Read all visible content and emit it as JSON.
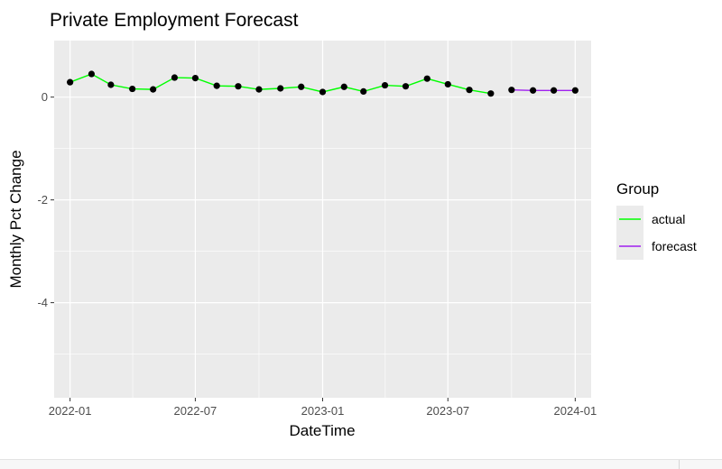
{
  "chart_data": {
    "type": "line",
    "title": "Private Employment Forecast",
    "xlabel": "DateTime",
    "ylabel": "Monthly Pct Change",
    "x_ticks": [
      "2022-01",
      "2022-07",
      "2023-01",
      "2023-07",
      "2024-01"
    ],
    "y_ticks": [
      "0",
      "-2",
      "-4"
    ],
    "y_tick_values": [
      0,
      -2,
      -4
    ],
    "xlim": [
      "2021-12-09",
      "2024-01-24"
    ],
    "ylim": [
      -5.85,
      1.1
    ],
    "grid": true,
    "legend_placement": "right",
    "legend_title": "Group",
    "series": [
      {
        "name": "actual",
        "color": "#00ff00",
        "points": [
          {
            "x": "2022-01",
            "y": 0.29
          },
          {
            "x": "2022-02",
            "y": 0.45
          },
          {
            "x": "2022-03",
            "y": 0.24
          },
          {
            "x": "2022-04",
            "y": 0.16
          },
          {
            "x": "2022-05",
            "y": 0.15
          },
          {
            "x": "2022-06",
            "y": 0.38
          },
          {
            "x": "2022-07",
            "y": 0.37
          },
          {
            "x": "2022-08",
            "y": 0.22
          },
          {
            "x": "2022-09",
            "y": 0.21
          },
          {
            "x": "2022-10",
            "y": 0.15
          },
          {
            "x": "2022-11",
            "y": 0.17
          },
          {
            "x": "2022-12",
            "y": 0.2
          },
          {
            "x": "2023-01",
            "y": 0.1
          },
          {
            "x": "2023-02",
            "y": 0.2
          },
          {
            "x": "2023-03",
            "y": 0.11
          },
          {
            "x": "2023-04",
            "y": 0.23
          },
          {
            "x": "2023-05",
            "y": 0.21
          },
          {
            "x": "2023-06",
            "y": 0.36
          },
          {
            "x": "2023-07",
            "y": 0.25
          },
          {
            "x": "2023-08",
            "y": 0.14
          },
          {
            "x": "2023-09",
            "y": 0.07
          }
        ]
      },
      {
        "name": "forecast",
        "color": "#a020f0",
        "points": [
          {
            "x": "2023-10",
            "y": 0.14
          },
          {
            "x": "2023-11",
            "y": 0.13
          },
          {
            "x": "2023-12",
            "y": 0.13
          },
          {
            "x": "2024-01",
            "y": 0.13
          }
        ]
      }
    ]
  }
}
